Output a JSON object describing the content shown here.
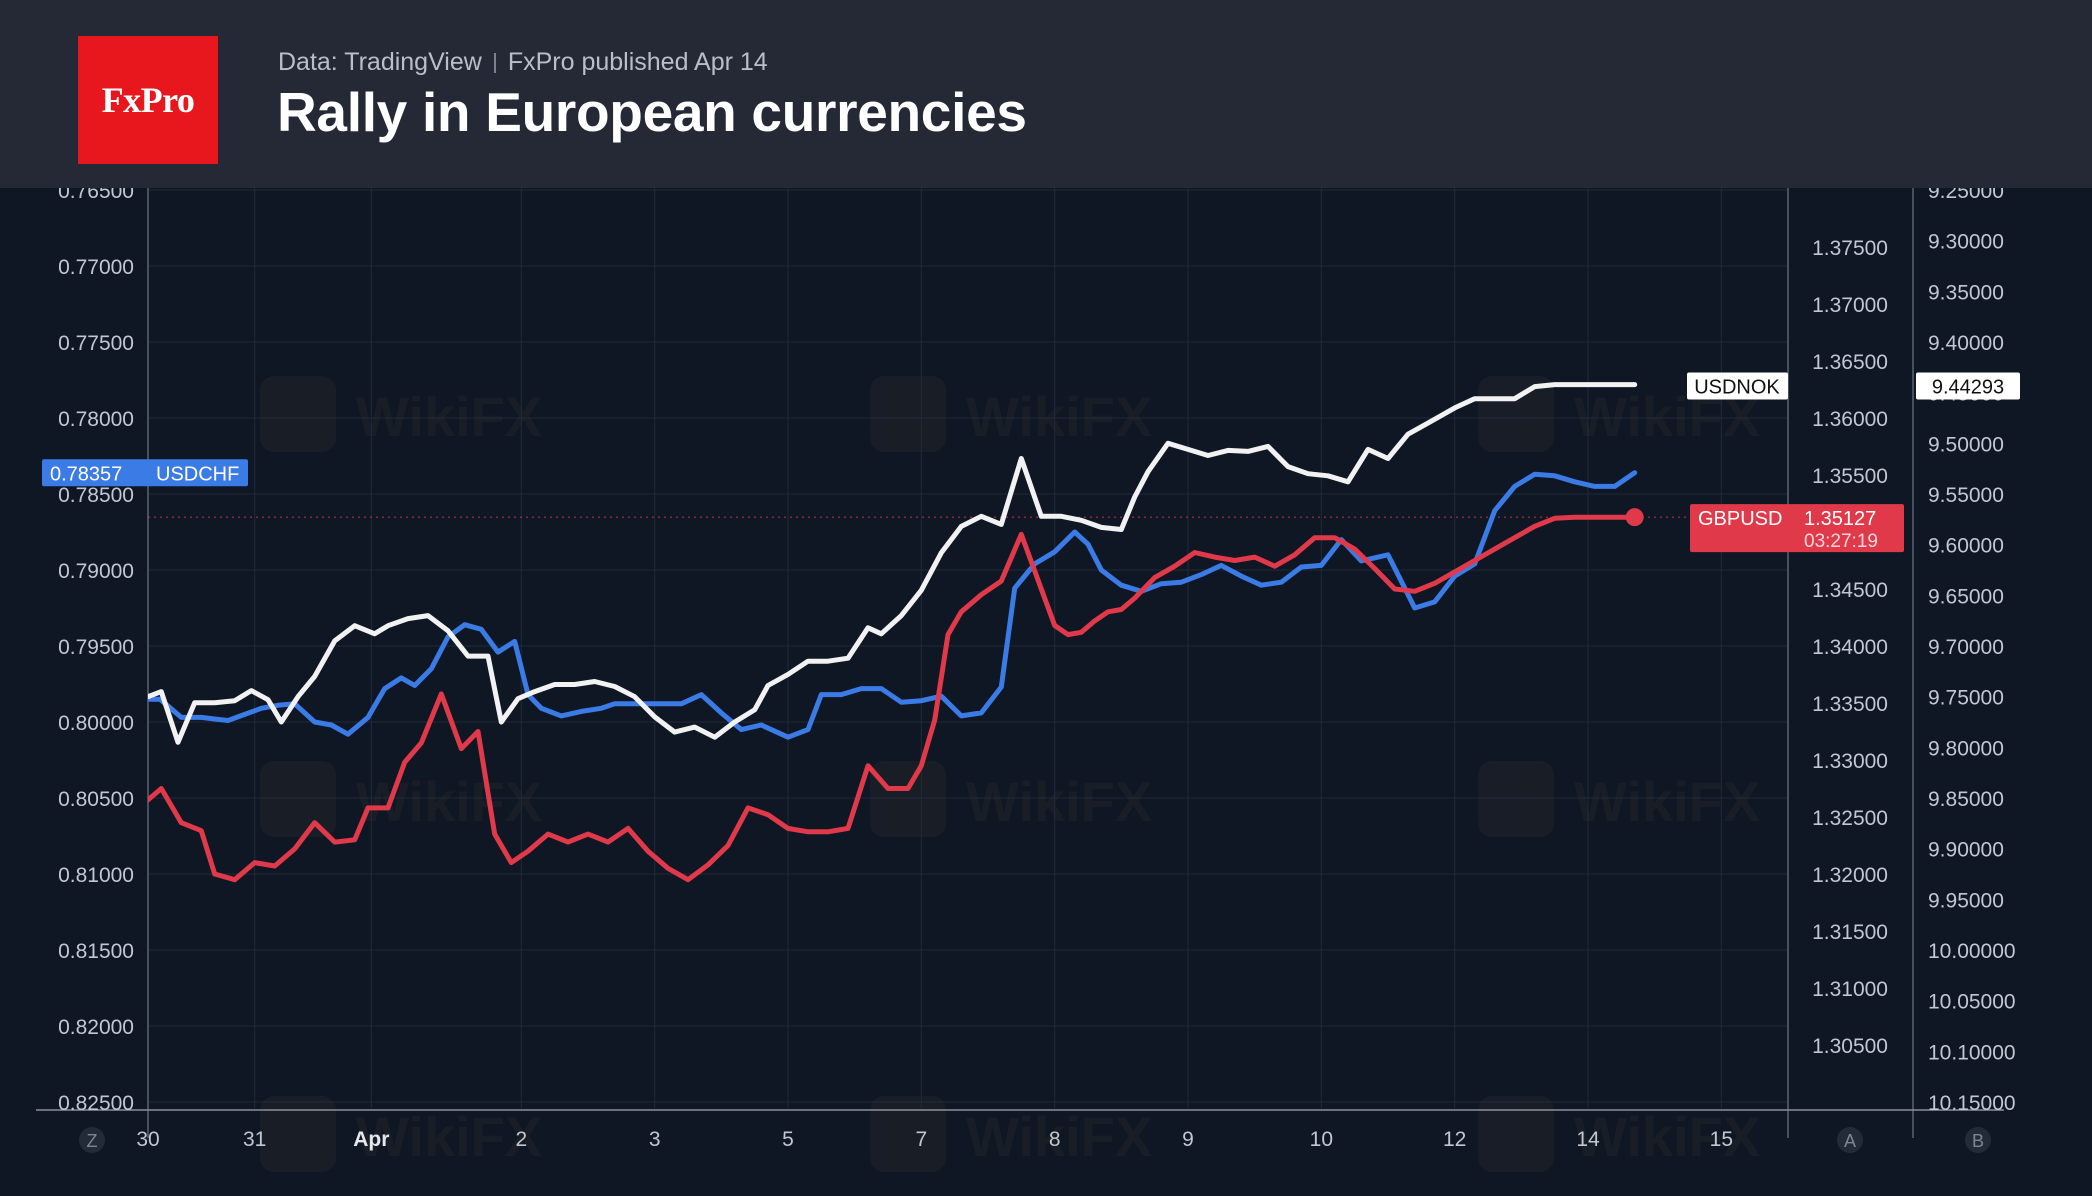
{
  "header": {
    "logo_text": "FxPro",
    "source": "Data: TradingView",
    "published": "FxPro published Apr 14",
    "title": "Rally in European currencies"
  },
  "colors": {
    "background": "#0f1624",
    "header": "#252935",
    "brand": "#e8171e",
    "usdchf": "#3b7be6",
    "gbpusd": "#e0394a",
    "usdnok": "#f2f2f2",
    "grid": "#222b3b",
    "axis_text": "#c2c7d0"
  },
  "chart_data": {
    "type": "line",
    "title": "Rally in European currencies",
    "grid": true,
    "x_ticks": [
      {
        "label": "30",
        "x": 0
      },
      {
        "label": "31",
        "x": 1.6
      },
      {
        "label": "Apr",
        "x": 3.35
      },
      {
        "label": "2",
        "x": 5.6
      },
      {
        "label": "3",
        "x": 7.6
      },
      {
        "label": "5",
        "x": 9.6
      },
      {
        "label": "7",
        "x": 11.6
      },
      {
        "label": "8",
        "x": 13.6
      },
      {
        "label": "9",
        "x": 15.6
      },
      {
        "label": "10",
        "x": 17.6
      },
      {
        "label": "12",
        "x": 19.6
      },
      {
        "label": "14",
        "x": 21.6
      },
      {
        "label": "15",
        "x": 23.6
      }
    ],
    "x_range": [
      0,
      24.6
    ],
    "axis_corner_labels": [
      "Z",
      "A",
      "B"
    ],
    "left_axis": {
      "inverted": true,
      "range": [
        0.765,
        0.825
      ],
      "ticks": [
        "0.76500",
        "0.77000",
        "0.77500",
        "0.78000",
        "0.78500",
        "0.79000",
        "0.79500",
        "0.80000",
        "0.80500",
        "0.81000",
        "0.81500",
        "0.82000",
        "0.82500"
      ]
    },
    "axis_a": {
      "range": [
        1.3,
        1.38
      ],
      "ticks": [
        "1.37500",
        "1.37000",
        "1.36500",
        "1.36000",
        "1.35500",
        "1.35000",
        "1.34500",
        "1.34000",
        "1.33500",
        "1.33000",
        "1.32500",
        "1.32000",
        "1.31500",
        "1.31000",
        "1.30500"
      ]
    },
    "axis_b": {
      "inverted": true,
      "range": [
        9.25,
        10.15
      ],
      "ticks": [
        "9.25000",
        "9.30000",
        "9.35000",
        "9.40000",
        "9.45000",
        "9.50000",
        "9.55000",
        "9.60000",
        "9.65000",
        "9.70000",
        "9.75000",
        "9.80000",
        "9.85000",
        "9.90000",
        "9.95000",
        "10.00000",
        "10.05000",
        "10.10000",
        "10.15000"
      ]
    },
    "series": [
      {
        "name": "USDCHF",
        "axis": "left",
        "last_label": "0.78357",
        "x": [
          0,
          0.18,
          0.5,
          0.8,
          1.0,
          1.2,
          1.45,
          1.7,
          1.95,
          2.2,
          2.5,
          2.75,
          3.0,
          3.3,
          3.55,
          3.8,
          4.0,
          4.25,
          4.5,
          4.75,
          5.0,
          5.25,
          5.5,
          5.7,
          5.9,
          6.2,
          6.5,
          6.8,
          7.0,
          7.3,
          7.55,
          7.8,
          8.0,
          8.3,
          8.6,
          8.9,
          9.2,
          9.6,
          9.9,
          10.1,
          10.4,
          10.7,
          11.0,
          11.3,
          11.6,
          11.9,
          12.2,
          12.5,
          12.8,
          13.0,
          13.3,
          13.6,
          13.9,
          14.1,
          14.3,
          14.6,
          14.9,
          15.2,
          15.5,
          15.8,
          16.1,
          16.4,
          16.7,
          17.0,
          17.3,
          17.6,
          17.9,
          18.2,
          18.6,
          19.0,
          19.3,
          19.6,
          19.9,
          20.2,
          20.5,
          20.8,
          21.1,
          21.4,
          21.7,
          22.0,
          22.3
        ],
        "values": [
          0.7985,
          0.7985,
          0.7997,
          0.7997,
          0.7998,
          0.7999,
          0.7995,
          0.7991,
          0.7989,
          0.7988,
          0.8,
          0.8002,
          0.8008,
          0.7997,
          0.7978,
          0.7971,
          0.7976,
          0.7965,
          0.7944,
          0.7936,
          0.7939,
          0.7954,
          0.7947,
          0.7982,
          0.7991,
          0.7996,
          0.7993,
          0.7991,
          0.7988,
          0.7988,
          0.7988,
          0.7988,
          0.7988,
          0.7982,
          0.7994,
          0.8005,
          0.8002,
          0.801,
          0.8005,
          0.7982,
          0.7982,
          0.7978,
          0.7978,
          0.7987,
          0.7986,
          0.7983,
          0.7996,
          0.7994,
          0.7977,
          0.7912,
          0.7896,
          0.7888,
          0.7875,
          0.7883,
          0.79,
          0.791,
          0.7914,
          0.7909,
          0.7908,
          0.7903,
          0.7897,
          0.7904,
          0.791,
          0.7908,
          0.7898,
          0.7897,
          0.788,
          0.7894,
          0.789,
          0.7925,
          0.7921,
          0.7904,
          0.7896,
          0.7861,
          0.7845,
          0.7837,
          0.7838,
          0.7842,
          0.7845,
          0.7845,
          0.7836
        ]
      },
      {
        "name": "GBPUSD",
        "axis": "a",
        "last_label": "1.35127",
        "countdown": "03:27:19",
        "x": [
          0,
          0.2,
          0.5,
          0.8,
          1.0,
          1.3,
          1.6,
          1.9,
          2.2,
          2.5,
          2.8,
          3.1,
          3.3,
          3.6,
          3.85,
          4.1,
          4.4,
          4.7,
          4.95,
          5.2,
          5.45,
          5.7,
          6.0,
          6.3,
          6.6,
          6.9,
          7.2,
          7.5,
          7.8,
          8.1,
          8.4,
          8.7,
          9.0,
          9.3,
          9.6,
          9.9,
          10.2,
          10.5,
          10.8,
          11.1,
          11.4,
          11.6,
          11.8,
          12.0,
          12.2,
          12.5,
          12.8,
          13.1,
          13.4,
          13.6,
          13.8,
          14.0,
          14.2,
          14.4,
          14.6,
          14.8,
          15.1,
          15.4,
          15.7,
          16.0,
          16.3,
          16.6,
          16.9,
          17.2,
          17.5,
          17.8,
          18.1,
          18.4,
          18.7,
          19.0,
          19.3,
          19.6,
          19.9,
          20.2,
          20.5,
          20.8,
          21.1,
          21.4,
          21.7,
          22.0,
          22.3
        ],
        "values": [
          1.3265,
          1.3275,
          1.3245,
          1.3238,
          1.32,
          1.3195,
          1.321,
          1.3207,
          1.3222,
          1.3245,
          1.3228,
          1.323,
          1.3258,
          1.3258,
          1.3298,
          1.3315,
          1.3358,
          1.331,
          1.3325,
          1.3235,
          1.321,
          1.322,
          1.3235,
          1.3228,
          1.3235,
          1.3228,
          1.324,
          1.322,
          1.3205,
          1.3195,
          1.3208,
          1.3225,
          1.3258,
          1.3252,
          1.324,
          1.3237,
          1.3237,
          1.324,
          1.3295,
          1.3275,
          1.3275,
          1.3295,
          1.3335,
          1.341,
          1.343,
          1.3445,
          1.3457,
          1.3498,
          1.345,
          1.3418,
          1.341,
          1.3412,
          1.3422,
          1.343,
          1.3432,
          1.3442,
          1.346,
          1.347,
          1.3482,
          1.3478,
          1.3475,
          1.3478,
          1.347,
          1.348,
          1.3495,
          1.3495,
          1.3485,
          1.3468,
          1.345,
          1.3448,
          1.3455,
          1.3465,
          1.3475,
          1.3485,
          1.3495,
          1.3505,
          1.3512,
          1.3513,
          1.3513,
          1.3513,
          1.3513
        ]
      },
      {
        "name": "USDNOK",
        "axis": "b",
        "last_label": "9.44293",
        "x": [
          0,
          0.2,
          0.45,
          0.7,
          1.0,
          1.3,
          1.55,
          1.8,
          2.0,
          2.25,
          2.5,
          2.8,
          3.1,
          3.4,
          3.6,
          3.9,
          4.2,
          4.5,
          4.8,
          5.1,
          5.3,
          5.55,
          5.8,
          6.1,
          6.4,
          6.7,
          7.0,
          7.3,
          7.6,
          7.9,
          8.2,
          8.5,
          8.8,
          9.1,
          9.3,
          9.6,
          9.9,
          10.2,
          10.5,
          10.8,
          11.0,
          11.3,
          11.6,
          11.9,
          12.2,
          12.5,
          12.8,
          13.1,
          13.4,
          13.7,
          14.0,
          14.3,
          14.6,
          14.8,
          15.0,
          15.3,
          15.6,
          15.9,
          16.2,
          16.5,
          16.8,
          17.1,
          17.4,
          17.7,
          18.0,
          18.3,
          18.6,
          18.9,
          19.2,
          19.6,
          19.9,
          20.2,
          20.5,
          20.8,
          21.1,
          21.4,
          21.7,
          22.0,
          22.3
        ],
        "values": [
          9.75,
          9.745,
          9.795,
          9.756,
          9.756,
          9.754,
          9.744,
          9.753,
          9.775,
          9.75,
          9.73,
          9.695,
          9.68,
          9.688,
          9.68,
          9.673,
          9.67,
          9.685,
          9.71,
          9.71,
          9.775,
          9.752,
          9.745,
          9.738,
          9.738,
          9.735,
          9.74,
          9.75,
          9.77,
          9.785,
          9.78,
          9.79,
          9.775,
          9.763,
          9.739,
          9.728,
          9.715,
          9.715,
          9.712,
          9.682,
          9.688,
          9.67,
          9.645,
          9.608,
          9.582,
          9.572,
          9.58,
          9.515,
          9.572,
          9.572,
          9.576,
          9.583,
          9.585,
          9.553,
          9.528,
          9.5,
          9.506,
          9.512,
          9.507,
          9.508,
          9.503,
          9.523,
          9.53,
          9.532,
          9.538,
          9.506,
          9.515,
          9.491,
          9.48,
          9.465,
          9.456,
          9.456,
          9.456,
          9.444,
          9.442,
          9.442,
          9.442,
          9.442,
          9.442
        ]
      }
    ],
    "watermark_text": "WikiFX"
  }
}
